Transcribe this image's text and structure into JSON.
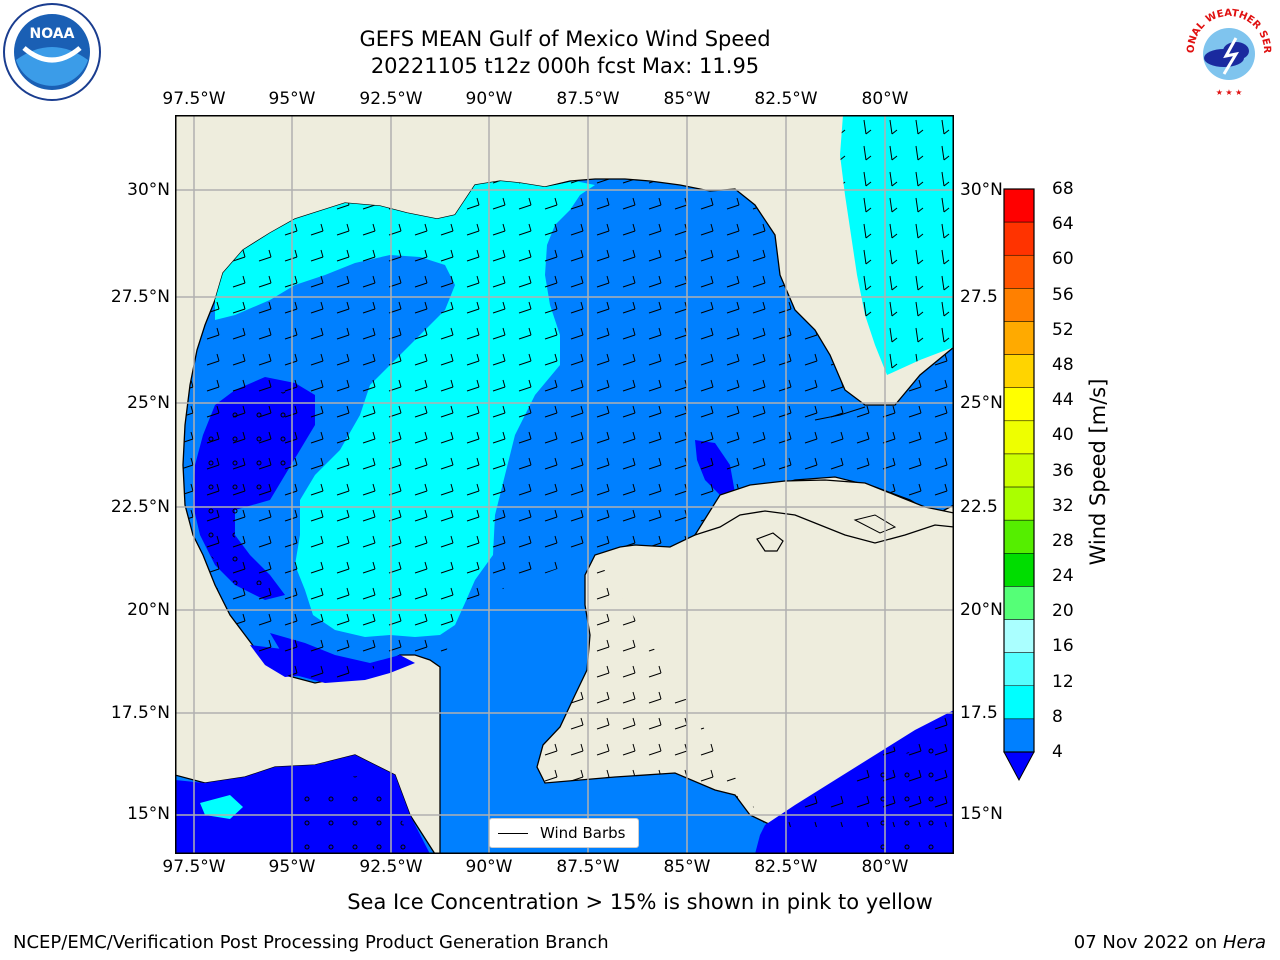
{
  "title": {
    "line1": "GEFS MEAN Gulf of Mexico Wind Speed",
    "line2": "20221105 t12z 000h fcst   Max: 11.95"
  },
  "map": {
    "lon_labels": [
      "97.5°W",
      "95°W",
      "92.5°W",
      "90°W",
      "87.5°W",
      "85°W",
      "82.5°W",
      "80°W"
    ],
    "lat_labels_left": [
      "30°N",
      "27.5°N",
      "25°N",
      "22.5°N",
      "20°N",
      "17.5°N",
      "15°N"
    ],
    "lat_labels_right": [
      "30°N",
      "27.5",
      "25°N",
      "22.5",
      "20°N",
      "17.5",
      "15°N"
    ],
    "land_color": "#eeeddd",
    "ocean_colors": {
      "dark_blue": "#0000ff",
      "blue": "#0080ff",
      "cyan": "#00ffff"
    },
    "grid": true
  },
  "legend": {
    "label": "Wind Barbs"
  },
  "colorbar": {
    "label": "Wind Speed [m/s]",
    "ticks": [
      "68",
      "64",
      "60",
      "56",
      "52",
      "48",
      "44",
      "40",
      "36",
      "32",
      "28",
      "24",
      "20",
      "16",
      "12",
      "8",
      "4"
    ],
    "colors": [
      "#ff0000",
      "#ff3300",
      "#ff5500",
      "#ff8000",
      "#ffaa00",
      "#ffd400",
      "#ffff00",
      "#eeff00",
      "#ccff00",
      "#aaff00",
      "#55ee00",
      "#00dd00",
      "#55ff77",
      "#aaffff",
      "#55ffff",
      "#00ffff",
      "#0080ff"
    ],
    "extend_color": "#0000ff"
  },
  "caption": "Sea Ice Concentration > 15% is shown in pink to yellow",
  "footer": {
    "left": "NCEP/EMC/Verification Post Processing Product Generation Branch",
    "right_text": "07 Nov 2022 on ",
    "right_italic": "Hera"
  },
  "logos": {
    "noaa": "NOAA",
    "nws": "NATIONAL WEATHER SERVICE"
  }
}
